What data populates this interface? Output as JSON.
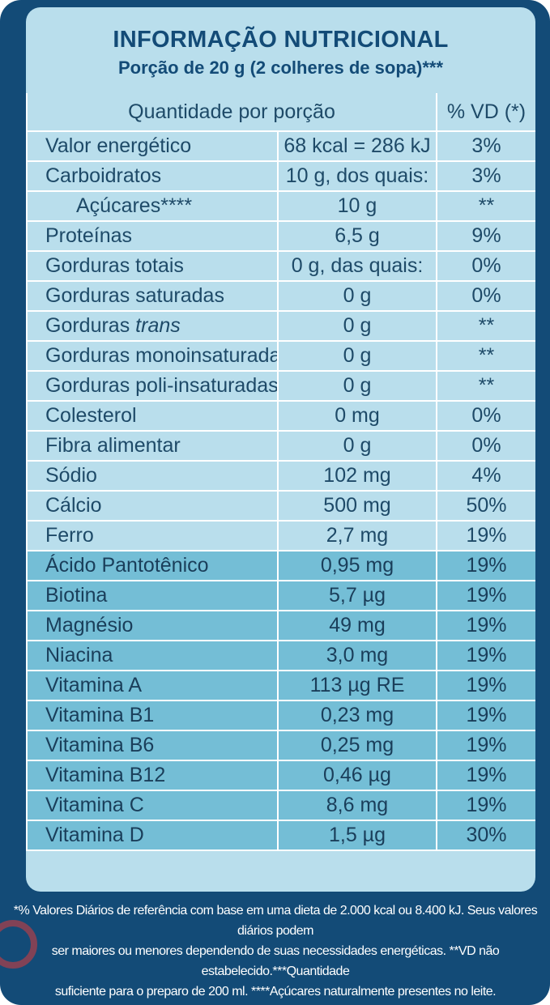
{
  "title": "INFORMAÇÃO NUTRICIONAL",
  "subtitle": "Porção de 20 g (2 colheres de sopa)***",
  "table": {
    "header": {
      "quantity": "Quantidade por porção",
      "vd": "% VD (*)"
    },
    "rows": [
      {
        "name": "Valor energético",
        "amount": "68 kcal = 286 kJ",
        "vd": "3%"
      },
      {
        "name": "Carboidratos",
        "amount": "10 g, dos quais:",
        "vd": "3%"
      },
      {
        "name": "Açúcares****",
        "amount": "10 g",
        "vd": "**"
      },
      {
        "name": "Proteínas",
        "amount": "6,5 g",
        "vd": "9%"
      },
      {
        "name": "Gorduras totais",
        "amount": "0 g, das quais:",
        "vd": "0%"
      },
      {
        "name": "Gorduras saturadas",
        "amount": "0 g",
        "vd": "0%"
      },
      {
        "name_prefix": "Gorduras ",
        "name_italic": "trans",
        "amount": "0 g",
        "vd": "**"
      },
      {
        "name": "Gorduras monoinsaturadas",
        "amount": "0 g",
        "vd": "**"
      },
      {
        "name": "Gorduras poli-insaturadas",
        "amount": "0 g",
        "vd": "**"
      },
      {
        "name": "Colesterol",
        "amount": "0 mg",
        "vd": "0%"
      },
      {
        "name": "Fibra alimentar",
        "amount": "0 g",
        "vd": "0%"
      },
      {
        "name": "Sódio",
        "amount": "102 mg",
        "vd": "4%"
      },
      {
        "name": "Cálcio",
        "amount": "500 mg",
        "vd": "50%"
      },
      {
        "name": "Ferro",
        "amount": "2,7 mg",
        "vd": "19%"
      },
      {
        "name": "Ácido Pantotênico",
        "amount": "0,95 mg",
        "vd": "19%"
      },
      {
        "name": "Biotina",
        "amount": "5,7 µg",
        "vd": "19%"
      },
      {
        "name": "Magnésio",
        "amount": "49 mg",
        "vd": "19%"
      },
      {
        "name": "Niacina",
        "amount": "3,0 mg",
        "vd": "19%"
      },
      {
        "name": "Vitamina A",
        "amount": "113 µg RE",
        "vd": "19%"
      },
      {
        "name": "Vitamina B1",
        "amount": "0,23 mg",
        "vd": "19%"
      },
      {
        "name": "Vitamina B6",
        "amount": "0,25 mg",
        "vd": "19%"
      },
      {
        "name": "Vitamina B12",
        "amount": "0,46 µg",
        "vd": "19%"
      },
      {
        "name": "Vitamina C",
        "amount": "8,6 mg",
        "vd": "19%"
      },
      {
        "name": "Vitamina D",
        "amount": "1,5 µg",
        "vd": "30%"
      }
    ]
  },
  "footnote": {
    "line1": "*% Valores Diários de referência com base em uma dieta de 2.000 kcal ou 8.400 kJ. Seus valores diários podem",
    "line2": "ser maiores ou menores dependendo de suas necessidades energéticas. **VD não estabelecido.***Quantidade",
    "line3": "suficiente para  o preparo de 200 ml. ****Açúcares naturalmente presentes no leite."
  },
  "colors": {
    "frame": "#134b77",
    "panel_light": "#b9deec",
    "panel_dark": "#74bed6",
    "text": "#1e4a68",
    "title": "#134b77",
    "footnote_text": "#ffffff"
  }
}
